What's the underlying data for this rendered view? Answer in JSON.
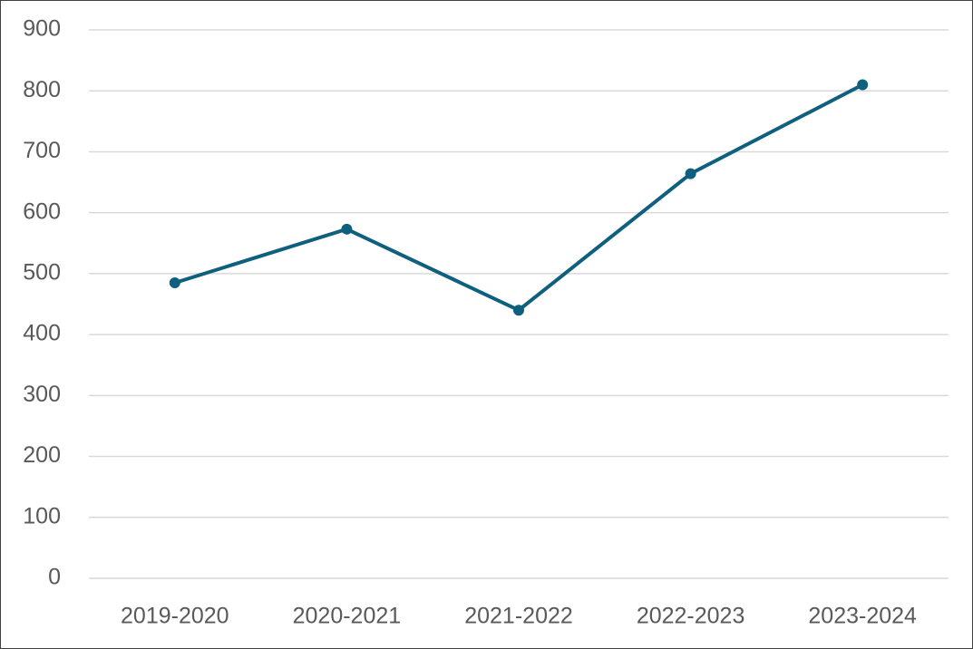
{
  "chart_data": {
    "type": "line",
    "categories": [
      "2019-2020",
      "2020-2021",
      "2021-2022",
      "2022-2023",
      "2023-2024"
    ],
    "series": [
      {
        "color": "#0f5f7e",
        "values": [
          485,
          573,
          440,
          664,
          810
        ]
      }
    ],
    "ylim": [
      0,
      900
    ],
    "yticks": [
      0,
      100,
      200,
      300,
      400,
      500,
      600,
      700,
      800,
      900
    ],
    "grid": true
  }
}
